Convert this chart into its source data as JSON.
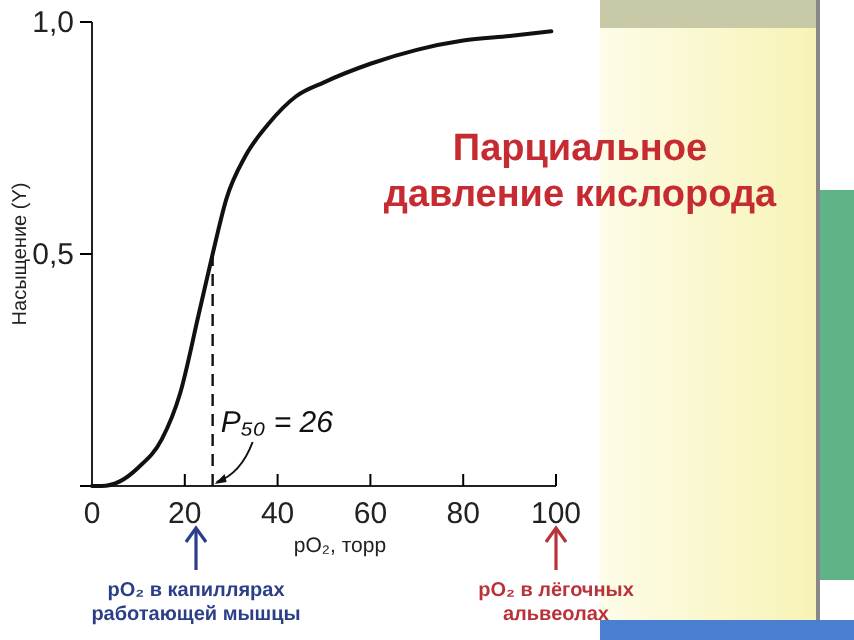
{
  "chart_data": {
    "type": "line",
    "title": "Парциальное давление кислорода",
    "xlabel": "pO₂, торр",
    "ylabel": "Насыщение (Y)",
    "x": [
      0,
      2,
      6,
      10,
      15,
      19,
      23,
      26,
      29,
      33,
      38,
      44,
      50,
      60,
      70,
      80,
      90,
      99
    ],
    "series": [
      {
        "color": "#111111",
        "values": [
          0,
          0,
          0.01,
          0.04,
          0.1,
          0.2,
          0.37,
          0.5,
          0.62,
          0.71,
          0.78,
          0.84,
          0.87,
          0.91,
          0.94,
          0.96,
          0.97,
          0.98
        ]
      }
    ],
    "xlim": [
      0,
      100
    ],
    "xticks": [
      0,
      20,
      40,
      60,
      80,
      100
    ],
    "ylim": [
      0,
      1
    ],
    "yticks": [
      {
        "value": 0,
        "label": null
      },
      {
        "value": 0.5,
        "label": "0,5"
      },
      {
        "value": 1,
        "label": "1,0"
      }
    ],
    "ref_lines": [
      {
        "axis": "x",
        "value": 26,
        "label": null,
        "line_style": "dashed",
        "color": "#111111"
      }
    ],
    "annotations": [
      {
        "text": "P₅₀ = 26",
        "x": 26,
        "y": 0
      },
      "pO₂ в капиллярах работающей мышцы",
      "pO₂ в лёгочных альвеолах"
    ],
    "grid": false,
    "marker": "none",
    "line_style": "solid"
  }
}
